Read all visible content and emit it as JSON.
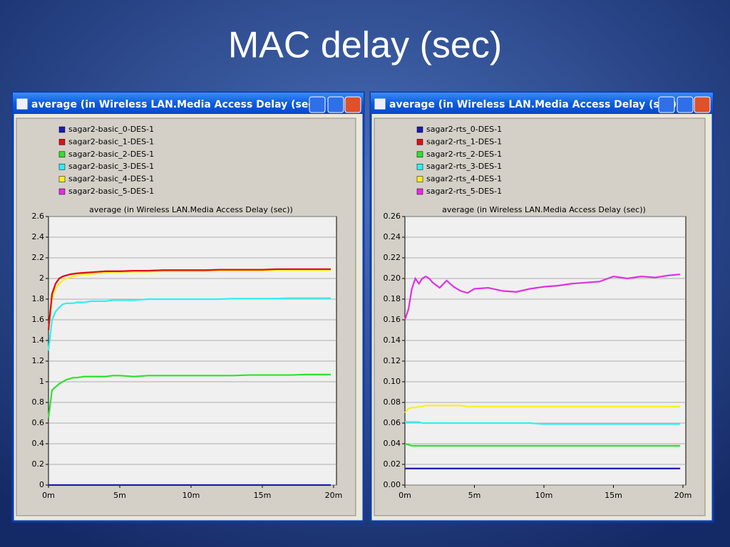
{
  "slide": {
    "title": "MAC delay (sec)"
  },
  "chart_data": [
    {
      "type": "line",
      "window_title": "average (in Wireless LAN.Media Access Delay (sec))",
      "title": "average (in Wireless LAN.Media Access Delay (sec))",
      "x": [
        0,
        0.25,
        0.5,
        0.75,
        1,
        1.25,
        1.5,
        1.75,
        2,
        2.5,
        3,
        3.5,
        4,
        4.5,
        5,
        6,
        7,
        8,
        9,
        10,
        11,
        12,
        13,
        14,
        15,
        16,
        17,
        18,
        19,
        19.8
      ],
      "xlim": [
        0,
        20
      ],
      "xticks": [
        {
          "value": 0,
          "label": "0m"
        },
        {
          "value": 5,
          "label": "5m"
        },
        {
          "value": 10,
          "label": "10m"
        },
        {
          "value": 15,
          "label": "15m"
        },
        {
          "value": 20,
          "label": "20m"
        }
      ],
      "ylim": [
        0,
        2.6
      ],
      "yticks": [
        0,
        0.2,
        0.4,
        0.6,
        0.8,
        1,
        1.2,
        1.4,
        1.6,
        1.8,
        2,
        2.2,
        2.4,
        2.6
      ],
      "grid": true,
      "series": [
        {
          "name": "sagar2-basic_0-DES-1",
          "color": "#1c1cb4",
          "values": [
            0,
            0,
            0,
            0,
            0,
            0,
            0,
            0,
            0,
            0,
            0,
            0,
            0,
            0,
            0,
            0,
            0,
            0,
            0,
            0,
            0,
            0,
            0,
            0,
            0,
            0,
            0,
            0,
            0,
            0
          ]
        },
        {
          "name": "sagar2-basic_1-DES-1",
          "color": "#e01010",
          "values": [
            1.5,
            1.85,
            1.95,
            2.0,
            2.02,
            2.03,
            2.04,
            2.045,
            2.05,
            2.055,
            2.06,
            2.065,
            2.07,
            2.07,
            2.07,
            2.075,
            2.075,
            2.08,
            2.08,
            2.08,
            2.08,
            2.085,
            2.085,
            2.085,
            2.085,
            2.09,
            2.09,
            2.09,
            2.09,
            2.09
          ]
        },
        {
          "name": "sagar2-basic_2-DES-1",
          "color": "#30e030",
          "values": [
            0.65,
            0.92,
            0.95,
            0.98,
            1.0,
            1.02,
            1.03,
            1.04,
            1.04,
            1.05,
            1.05,
            1.05,
            1.05,
            1.06,
            1.06,
            1.05,
            1.06,
            1.06,
            1.06,
            1.06,
            1.06,
            1.06,
            1.06,
            1.065,
            1.065,
            1.065,
            1.065,
            1.07,
            1.07,
            1.07
          ]
        },
        {
          "name": "sagar2-basic_3-DES-1",
          "color": "#30f0f0",
          "values": [
            1.3,
            1.6,
            1.68,
            1.72,
            1.75,
            1.76,
            1.76,
            1.76,
            1.77,
            1.77,
            1.78,
            1.78,
            1.78,
            1.79,
            1.79,
            1.79,
            1.8,
            1.8,
            1.8,
            1.8,
            1.8,
            1.8,
            1.805,
            1.805,
            1.805,
            1.805,
            1.81,
            1.81,
            1.81,
            1.81
          ]
        },
        {
          "name": "sagar2-basic_4-DES-1",
          "color": "#f8f020",
          "values": [
            1.5,
            1.8,
            1.9,
            1.95,
            1.98,
            2.0,
            2.01,
            2.02,
            2.03,
            2.04,
            2.045,
            2.05,
            2.055,
            2.06,
            2.06,
            2.065,
            2.065,
            2.07,
            2.07,
            2.07,
            2.07,
            2.075,
            2.075,
            2.075,
            2.075,
            2.08,
            2.08,
            2.08,
            2.08,
            2.08
          ]
        },
        {
          "name": "sagar2-basic_5-DES-1",
          "color": "#e030e0",
          "values": [
            1.5,
            1.85,
            1.95,
            2.0,
            2.02,
            2.03,
            2.04,
            2.045,
            2.05,
            2.055,
            2.06,
            2.065,
            2.07,
            2.07,
            2.07,
            2.075,
            2.075,
            2.08,
            2.08,
            2.08,
            2.08,
            2.085,
            2.085,
            2.085,
            2.085,
            2.09,
            2.09,
            2.09,
            2.09,
            2.09
          ]
        }
      ]
    },
    {
      "type": "line",
      "window_title": "average (in Wireless LAN.Media Access Delay (sec))",
      "title": "average (in Wireless LAN.Media Access Delay (sec))",
      "x": [
        0,
        0.25,
        0.5,
        0.75,
        1,
        1.25,
        1.5,
        1.75,
        2,
        2.5,
        3,
        3.5,
        4,
        4.5,
        5,
        6,
        7,
        8,
        9,
        10,
        11,
        12,
        13,
        14,
        15,
        16,
        17,
        18,
        19,
        19.8
      ],
      "xlim": [
        0,
        20
      ],
      "xticks": [
        {
          "value": 0,
          "label": "0m"
        },
        {
          "value": 5,
          "label": "5m"
        },
        {
          "value": 10,
          "label": "10m"
        },
        {
          "value": 15,
          "label": "15m"
        },
        {
          "value": 20,
          "label": "20m"
        }
      ],
      "ylim": [
        0,
        0.26
      ],
      "yticks": [
        {
          "value": 0,
          "label": "0.00"
        },
        0.02,
        0.04,
        0.06,
        0.08,
        {
          "value": 0.1,
          "label": "0.10"
        },
        0.12,
        0.14,
        0.16,
        0.18,
        {
          "value": 0.2,
          "label": "0.20"
        },
        0.22,
        0.24,
        0.26
      ],
      "grid": true,
      "series": [
        {
          "name": "sagar2-rts_0-DES-1",
          "color": "#1c1cb4",
          "values": [
            0.016,
            0.016,
            0.016,
            0.016,
            0.016,
            0.016,
            0.016,
            0.016,
            0.016,
            0.016,
            0.016,
            0.016,
            0.016,
            0.016,
            0.016,
            0.016,
            0.016,
            0.016,
            0.016,
            0.016,
            0.016,
            0.016,
            0.016,
            0.016,
            0.016,
            0.016,
            0.016,
            0.016,
            0.016,
            0.016
          ]
        },
        {
          "name": "sagar2-rts_1-DES-1",
          "color": "#e01010",
          "values": [
            0.016,
            0.016,
            0.016,
            0.016,
            0.016,
            0.016,
            0.016,
            0.016,
            0.016,
            0.016,
            0.016,
            0.016,
            0.016,
            0.016,
            0.016,
            0.016,
            0.016,
            0.016,
            0.016,
            0.016,
            0.016,
            0.016,
            0.016,
            0.016,
            0.016,
            0.016,
            0.016,
            0.016,
            0.016,
            0.016
          ]
        },
        {
          "name": "sagar2-rts_2-DES-1",
          "color": "#30e030",
          "values": [
            0.04,
            0.039,
            0.038,
            0.038,
            0.038,
            0.038,
            0.038,
            0.038,
            0.038,
            0.038,
            0.038,
            0.038,
            0.038,
            0.038,
            0.038,
            0.038,
            0.038,
            0.038,
            0.038,
            0.038,
            0.038,
            0.038,
            0.038,
            0.038,
            0.038,
            0.038,
            0.038,
            0.038,
            0.038,
            0.038
          ]
        },
        {
          "name": "sagar2-rts_3-DES-1",
          "color": "#30f0f0",
          "values": [
            0.061,
            0.061,
            0.061,
            0.061,
            0.061,
            0.06,
            0.06,
            0.06,
            0.06,
            0.06,
            0.06,
            0.06,
            0.06,
            0.06,
            0.06,
            0.06,
            0.06,
            0.06,
            0.06,
            0.059,
            0.059,
            0.059,
            0.059,
            0.059,
            0.059,
            0.059,
            0.059,
            0.059,
            0.059,
            0.059
          ]
        },
        {
          "name": "sagar2-rts_4-DES-1",
          "color": "#f8f020",
          "values": [
            0.07,
            0.074,
            0.075,
            0.075,
            0.076,
            0.076,
            0.077,
            0.077,
            0.077,
            0.077,
            0.077,
            0.077,
            0.077,
            0.076,
            0.076,
            0.076,
            0.076,
            0.076,
            0.076,
            0.076,
            0.076,
            0.076,
            0.076,
            0.076,
            0.076,
            0.076,
            0.076,
            0.076,
            0.076,
            0.076
          ]
        },
        {
          "name": "sagar2-rts_5-DES-1",
          "color": "#e030e0",
          "values": [
            0.16,
            0.17,
            0.19,
            0.2,
            0.195,
            0.2,
            0.202,
            0.2,
            0.196,
            0.191,
            0.198,
            0.192,
            0.188,
            0.186,
            0.19,
            0.191,
            0.188,
            0.187,
            0.19,
            0.192,
            0.193,
            0.195,
            0.196,
            0.197,
            0.202,
            0.2,
            0.202,
            0.201,
            0.203,
            0.204
          ]
        }
      ]
    }
  ]
}
